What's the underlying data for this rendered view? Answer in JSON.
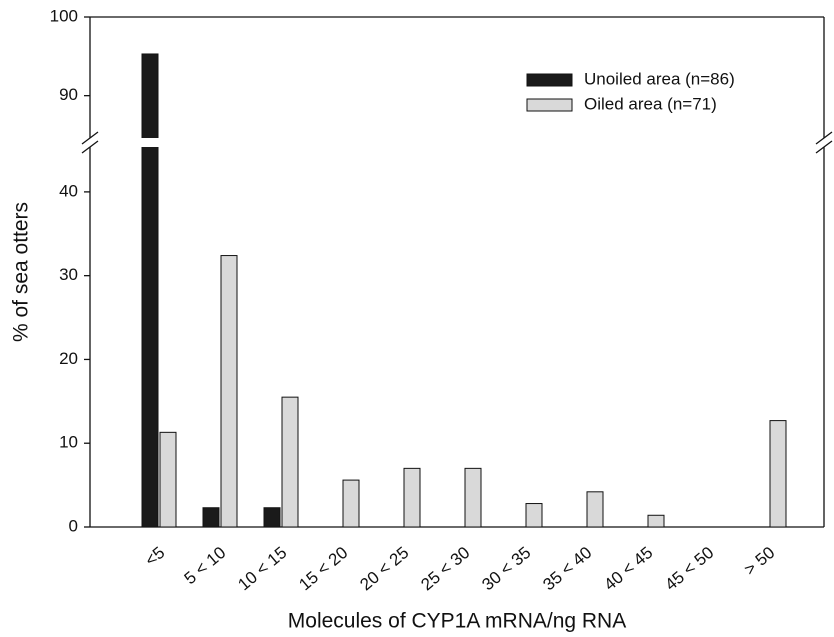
{
  "chart_data": {
    "type": "bar",
    "x_label": "Molecules of CYP1A mRNA/ng RNA",
    "y_label": "% of sea otters",
    "categories": [
      "<5",
      "5 < 10",
      "10 < 15",
      "15 < 20",
      "20 < 25",
      "25 < 30",
      "30 < 35",
      "35 < 40",
      "40 < 45",
      "45 < 50",
      "> 50"
    ],
    "series": [
      {
        "name": "Unoiled area (n=86)",
        "color": "#1a1a1a",
        "values": [
          95.3,
          2.3,
          2.3,
          0,
          0,
          0,
          0,
          0,
          0,
          0,
          0
        ]
      },
      {
        "name": "Oiled area (n=71)",
        "color": "#d9d9d9",
        "values": [
          11.3,
          32.4,
          15.5,
          5.6,
          7.0,
          7.0,
          2.8,
          4.2,
          1.4,
          0,
          12.7
        ]
      }
    ],
    "ylim": [
      0,
      100
    ],
    "y_break": [
      45,
      85
    ],
    "yticks": [
      0,
      10,
      20,
      30,
      40,
      90,
      100
    ],
    "legend": "upper right"
  }
}
